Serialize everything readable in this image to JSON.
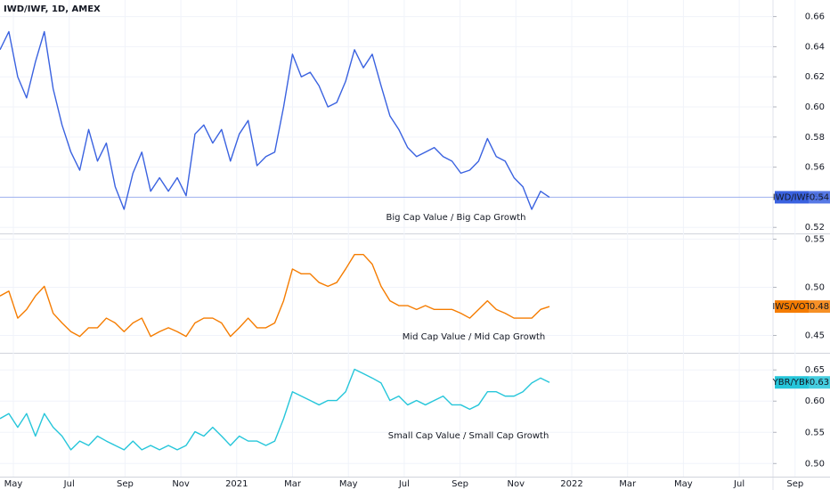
{
  "time_axis": {
    "labels": [
      "May",
      "Jul",
      "Sep",
      "Nov",
      "2021",
      "Mar",
      "May",
      "Jul",
      "Sep",
      "Nov",
      "2022",
      "Mar",
      "May",
      "Jul",
      "Sep"
    ]
  },
  "chart_data": [
    {
      "type": "line",
      "title": "IWD/IWF, 1D, AMEX",
      "annotation": "Big Cap Value / Big Cap Growth",
      "series": [
        {
          "name": "IWD/IWF",
          "color": "#3a62e0",
          "values": [
            0.638,
            0.65,
            0.62,
            0.606,
            0.63,
            0.65,
            0.612,
            0.588,
            0.57,
            0.558,
            0.585,
            0.564,
            0.576,
            0.547,
            0.532,
            0.556,
            0.57,
            0.544,
            0.553,
            0.544,
            0.553,
            0.541,
            0.582,
            0.588,
            0.576,
            0.585,
            0.564,
            0.582,
            0.591,
            0.561,
            0.567,
            0.57,
            0.6,
            0.635,
            0.62,
            0.623,
            0.614,
            0.6,
            0.603,
            0.617,
            0.638,
            0.626,
            0.635,
            0.614,
            0.594,
            0.585,
            0.573,
            0.567,
            0.57,
            0.573,
            0.567,
            0.564,
            0.556,
            0.558,
            0.564,
            0.579,
            0.567,
            0.564,
            0.553,
            0.547,
            0.532,
            0.544,
            0.54
          ]
        }
      ],
      "ylim": [
        0.516,
        0.671
      ],
      "yticks": [
        0.52,
        0.54,
        0.56,
        0.58,
        {
          "value": 0.6,
          "label": "0.60"
        },
        0.62,
        0.64,
        0.66
      ],
      "grid": true
    },
    {
      "type": "line",
      "annotation": "Mid Cap Value / Mid Cap Growth",
      "series": [
        {
          "name": "IWS/VOT",
          "color": "#f57c00",
          "values": [
            0.491,
            0.496,
            0.468,
            0.477,
            0.491,
            0.501,
            0.473,
            0.463,
            0.454,
            0.449,
            0.458,
            0.458,
            0.468,
            0.463,
            0.454,
            0.463,
            0.468,
            0.449,
            0.454,
            0.458,
            0.454,
            0.449,
            0.463,
            0.468,
            0.468,
            0.463,
            0.449,
            0.458,
            0.468,
            0.458,
            0.458,
            0.463,
            0.486,
            0.519,
            0.514,
            0.514,
            0.505,
            0.501,
            0.505,
            0.519,
            0.534,
            0.534,
            0.524,
            0.501,
            0.486,
            0.481,
            0.481,
            0.477,
            0.481,
            0.477,
            0.477,
            0.477,
            0.473,
            0.468,
            0.477,
            0.486,
            0.477,
            0.473,
            0.468,
            0.468,
            0.468,
            0.477,
            0.48
          ]
        }
      ],
      "ylim": [
        0.432,
        0.555
      ],
      "yticks": [
        0.45,
        {
          "value": 0.5,
          "label": "0.50"
        },
        0.55
      ],
      "grid": true
    },
    {
      "type": "line",
      "annotation": "Small Cap Value / Small Cap Growth",
      "series": [
        {
          "name": "YBR/YBK",
          "color": "#26c6da",
          "values": [
            0.572,
            0.58,
            0.558,
            0.58,
            0.544,
            0.58,
            0.558,
            0.544,
            0.522,
            0.536,
            0.529,
            0.544,
            0.536,
            0.529,
            0.522,
            0.536,
            0.522,
            0.529,
            0.522,
            0.529,
            0.522,
            0.529,
            0.551,
            0.544,
            0.558,
            0.544,
            0.529,
            0.544,
            0.536,
            0.536,
            0.529,
            0.536,
            0.572,
            0.615,
            0.608,
            0.601,
            0.594,
            0.601,
            0.601,
            0.615,
            0.651,
            0.644,
            0.637,
            0.629,
            0.601,
            0.608,
            0.594,
            0.601,
            0.594,
            0.601,
            0.608,
            0.594,
            0.594,
            0.587,
            0.594,
            0.615,
            0.615,
            0.608,
            0.608,
            0.615,
            0.629,
            0.637,
            0.63
          ]
        }
      ],
      "ylim": [
        0.479,
        0.676
      ],
      "yticks": [
        {
          "value": 0.5,
          "label": "0.50"
        },
        0.55,
        {
          "value": 0.6,
          "label": "0.60"
        },
        0.65
      ],
      "grid": true
    }
  ]
}
